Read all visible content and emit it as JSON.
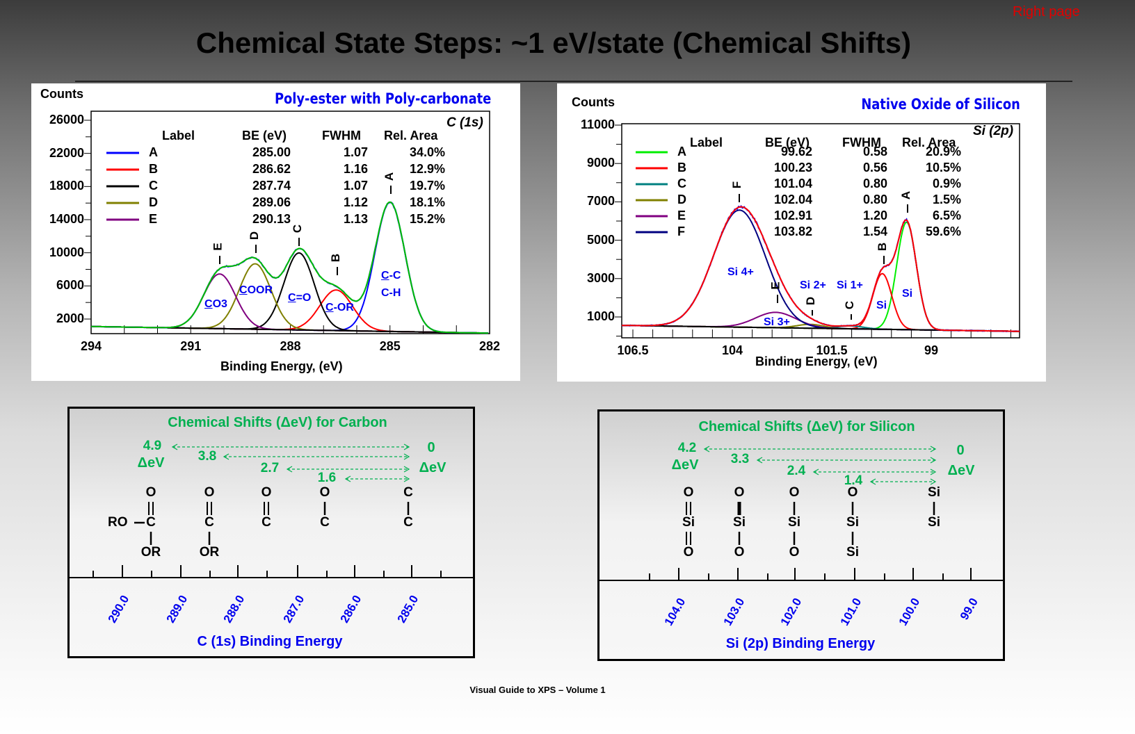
{
  "header": {
    "title": "Chemical State Steps:  ~1 eV/state  (Chemical Shifts)",
    "page_label": "Right page"
  },
  "footer": "Visual Guide to XPS – Volume 1",
  "chart_data": [
    {
      "type": "line",
      "title": "Poly-ester with Poly-carbonate",
      "region": "C (1s)",
      "ylabel": "Counts",
      "xlabel": "Binding Energy, (eV)",
      "xlim": [
        294,
        282
      ],
      "ylim": [
        0,
        27000
      ],
      "x_ticks": [
        294,
        291,
        288,
        285,
        282
      ],
      "y_ticks": [
        2000,
        6000,
        10000,
        14000,
        18000,
        22000,
        26000
      ],
      "legend_headers": [
        "Label",
        "BE (eV)",
        "FWHM",
        "Rel. Area"
      ],
      "series": [
        {
          "name": "A",
          "be": "285.00",
          "fwhm": "1.07",
          "area": "34.0%",
          "color": "#0000ff",
          "peak_height": 15600,
          "assignment": "C-C\nC-H"
        },
        {
          "name": "B",
          "be": "286.62",
          "fwhm": "1.16",
          "area": "12.9%",
          "color": "#ff0000",
          "peak_height": 4900,
          "assignment": "C-OR"
        },
        {
          "name": "C",
          "be": "287.74",
          "fwhm": "1.07",
          "area": "19.7%",
          "color": "#000000",
          "peak_height": 9300,
          "assignment": "C=O"
        },
        {
          "name": "D",
          "be": "289.06",
          "fwhm": "1.12",
          "area": "18.1%",
          "color": "#808000",
          "peak_height": 7900,
          "assignment": "COOR"
        },
        {
          "name": "E",
          "be": "290.13",
          "fwhm": "1.13",
          "area": "15.2%",
          "color": "#800080",
          "peak_height": 6600,
          "assignment": "CO3"
        }
      ],
      "background": [
        [
          294,
          1100
        ],
        [
          282,
          300
        ]
      ],
      "envelope_color": "#00c000",
      "data_color": "#0000ff"
    },
    {
      "type": "line",
      "title": "Native Oxide of Silicon",
      "region": "Si (2p)",
      "ylabel": "Counts",
      "xlabel": "Binding Energy, (eV)",
      "xlim": [
        106.78,
        96.78
      ],
      "ylim": [
        0,
        11100
      ],
      "x_ticks": [
        106.5,
        104,
        101.5,
        99
      ],
      "y_ticks": [
        1000,
        3000,
        5000,
        7000,
        9000,
        11000
      ],
      "legend_headers": [
        "Label",
        "BE (eV)",
        "FWHM",
        "Rel. Area"
      ],
      "series": [
        {
          "name": "A",
          "be": "99.62",
          "fwhm": "0.58",
          "area": "20.9%",
          "color": "#00ee00",
          "peak_height": 5600,
          "assignment": "Si"
        },
        {
          "name": "B",
          "be": "100.23",
          "fwhm": "0.56",
          "area": "10.5%",
          "color": "#ff0000",
          "peak_height": 2900,
          "assignment": "Si"
        },
        {
          "name": "C",
          "be": "101.04",
          "fwhm": "0.80",
          "area": "0.9%",
          "color": "#008080",
          "peak_height": 150,
          "assignment": "Si 1+"
        },
        {
          "name": "D",
          "be": "102.04",
          "fwhm": "0.80",
          "area": "1.5%",
          "color": "#808000",
          "peak_height": 200,
          "assignment": "Si 2+"
        },
        {
          "name": "E",
          "be": "102.91",
          "fwhm": "1.20",
          "area": "6.5%",
          "color": "#800080",
          "peak_height": 800,
          "assignment": "Si 3+"
        },
        {
          "name": "F",
          "be": "103.82",
          "fwhm": "1.54",
          "area": "59.6%",
          "color": "#000080",
          "peak_height": 6100,
          "assignment": "Si 4+"
        }
      ],
      "background": [
        [
          106.78,
          560
        ],
        [
          96.78,
          250
        ]
      ],
      "envelope_color": "#ff0000",
      "data_color": "#0000ff"
    }
  ],
  "carbon_box": {
    "title": "Chemical Shifts (ΔeV) for Carbon",
    "axis_label": "C (1s) Binding Energy",
    "ticks": [
      "290.0",
      "289.0",
      "288.0",
      "287.0",
      "286.0",
      "285.0"
    ],
    "shifts": [
      "4.9",
      "3.8",
      "2.7",
      "1.6"
    ],
    "zero": "0",
    "unit": "ΔeV",
    "structures": [
      {
        "atoms": [
          "O",
          "C",
          "OR"
        ],
        "bonds": [
          "double",
          "single"
        ],
        "side": "RO"
      },
      {
        "atoms": [
          "O",
          "C",
          "OR"
        ],
        "bonds": [
          "double",
          "single"
        ]
      },
      {
        "atoms": [
          "O",
          "C"
        ],
        "bonds": [
          "double"
        ]
      },
      {
        "atoms": [
          "O",
          "C"
        ],
        "bonds": [
          "single"
        ]
      },
      {
        "atoms": [
          "C",
          "C"
        ],
        "bonds": [
          "single"
        ]
      }
    ]
  },
  "silicon_box": {
    "title": "Chemical Shifts (ΔeV) for Silicon",
    "axis_label": "Si (2p) Binding Energy",
    "ticks": [
      "104.0",
      "103.0",
      "102.0",
      "101.0",
      "100.0",
      "99.0"
    ],
    "shifts": [
      "4.2",
      "3.3",
      "2.4",
      "1.4"
    ],
    "zero": "0",
    "unit": "ΔeV",
    "structures": [
      {
        "atoms": [
          "O",
          "Si",
          "O"
        ],
        "bonds": [
          "double",
          "double"
        ]
      },
      {
        "atoms": [
          "O",
          "Si",
          "O"
        ],
        "bonds": [
          "bold",
          "single"
        ]
      },
      {
        "atoms": [
          "O",
          "Si",
          "O"
        ],
        "bonds": [
          "single",
          "single"
        ]
      },
      {
        "atoms": [
          "O",
          "Si",
          "Si"
        ],
        "bonds": [
          "single",
          "single"
        ]
      },
      {
        "atoms": [
          "Si",
          "Si"
        ],
        "bonds": [
          "single"
        ]
      }
    ]
  }
}
